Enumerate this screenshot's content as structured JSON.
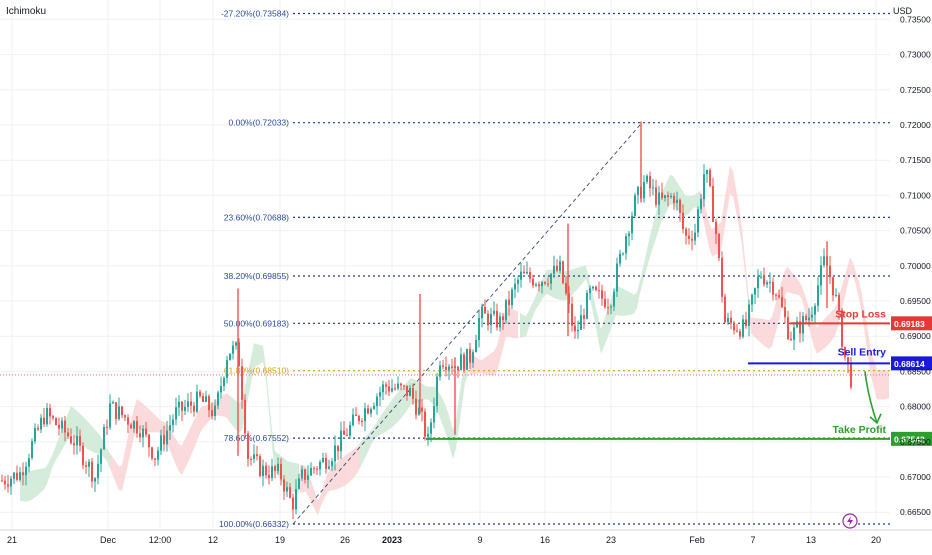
{
  "indicator_label": "Ichimoku",
  "currency": "USD",
  "colors": {
    "up": "#26a69a",
    "down": "#ef5350",
    "fib": "#1e3a8a",
    "fib_text": "#2a4a9a",
    "fib_61": "#d4a017",
    "stop": "#e53935",
    "entry": "#1a1adf",
    "tp": "#2e9e2e",
    "cloud_green": "#cfe9d5",
    "cloud_red": "#f9d3d3",
    "grid": "#eef0f3",
    "price_line": "#ef5350"
  },
  "chart_data": {
    "type": "candlestick",
    "title": "",
    "ylim": [
      0.6625,
      0.7365
    ],
    "y_ticks": [
      "0.66500",
      "0.67000",
      "0.67500",
      "0.68000",
      "0.68500",
      "0.69000",
      "0.69500",
      "0.70000",
      "0.70500",
      "0.71000",
      "0.71500",
      "0.72000",
      "0.72500",
      "0.73000",
      "0.73500"
    ],
    "x_ticks": [
      "21",
      "Dec",
      "12:00",
      "12",
      "19",
      "26",
      "2023",
      "9",
      "16",
      "23",
      "Feb",
      "7",
      "13",
      "20"
    ],
    "fib_levels": [
      {
        "label": "-27.20%(0.73584)",
        "price": 0.73584
      },
      {
        "label": "0.00%(0.72033)",
        "price": 0.72033
      },
      {
        "label": "23.60%(0.70688)",
        "price": 0.70688
      },
      {
        "label": "38.20%(0.69855)",
        "price": 0.69855
      },
      {
        "label": "50.00%(0.69183)",
        "price": 0.69183
      },
      {
        "label": "61.80%(0.68510)",
        "price": 0.6851,
        "golden": true
      },
      {
        "label": "78.60%(0.67552)",
        "price": 0.67552
      },
      {
        "label": "100.00%(0.66332)",
        "price": 0.66332
      }
    ],
    "trade_levels": {
      "stop_loss": {
        "label": "Stop Loss",
        "price": 0.69183,
        "tag": "0.69183"
      },
      "sell_entry": {
        "label": "Sell Entry",
        "price": 0.68614,
        "tag": "0.68614"
      },
      "take_profit": {
        "label": "Take Profit",
        "price": 0.67542,
        "tag": "0.67542"
      }
    },
    "current_price": 0.6845,
    "fib_anchor": {
      "from_price": 0.66332,
      "to_price": 0.72033
    }
  },
  "flash_icon": "lightning-icon"
}
